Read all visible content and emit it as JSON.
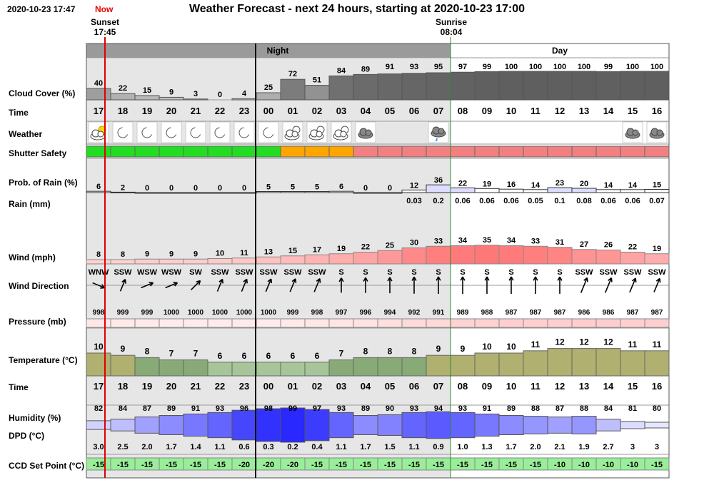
{
  "header": {
    "datetime": "2020-10-23 17:47",
    "now_label": "Now",
    "title": "Weather Forecast - next 24 hours, starting at 2020-10-23 17:00"
  },
  "sunset": {
    "label": "Sunset",
    "time": "17:45"
  },
  "sunrise": {
    "label": "Sunrise",
    "time": "08:04"
  },
  "bands": {
    "night": "Night",
    "day": "Day"
  },
  "row_labels": {
    "cloud": "Cloud Cover (%)",
    "time": "Time",
    "weather": "Weather",
    "shutter": "Shutter Safety",
    "rain_prob": "Prob. of Rain (%)",
    "rain_mm": "Rain (mm)",
    "wind": "Wind (mph)",
    "wind_dir": "Wind Direction",
    "pressure": "Pressure (mb)",
    "temperature": "Temperature (°C)",
    "time2": "Time",
    "humidity": "Humidity (%)",
    "dpd": "DPD (°C)",
    "ccd": "CCD Set Point (°C)"
  },
  "hours": [
    "17",
    "18",
    "19",
    "20",
    "21",
    "22",
    "23",
    "00",
    "01",
    "02",
    "03",
    "04",
    "05",
    "06",
    "07",
    "08",
    "09",
    "10",
    "11",
    "12",
    "13",
    "14",
    "15",
    "16"
  ],
  "cloud_cover": [
    "40",
    "22",
    "15",
    "9",
    "3",
    "0",
    "4",
    "25",
    "72",
    "51",
    "84",
    "89",
    "91",
    "93",
    "95",
    "97",
    "99",
    "100",
    "100",
    "100",
    "100",
    "99",
    "100",
    "100"
  ],
  "weather_icons": [
    "partly-cloudy-day-icon",
    "moon-icon",
    "moon-icon",
    "moon-icon",
    "moon-icon",
    "moon-icon",
    "moon-icon",
    "moon-icon",
    "cloudy-night-icon",
    "cloudy-night-icon",
    "cloudy-night-icon",
    "cloud-icon",
    "",
    "",
    "rain-cloud-icon",
    "",
    "",
    "",
    "",
    "",
    "",
    "",
    "cloud-icon",
    "cloud-icon"
  ],
  "shutter_safety": [
    "safe",
    "safe",
    "safe",
    "safe",
    "safe",
    "safe",
    "safe",
    "safe",
    "caution",
    "caution",
    "caution",
    "unsafe",
    "unsafe",
    "unsafe",
    "unsafe",
    "unsafe",
    "unsafe",
    "unsafe",
    "unsafe",
    "unsafe",
    "unsafe",
    "unsafe",
    "unsafe",
    "unsafe"
  ],
  "rain_prob": [
    "6",
    "2",
    "0",
    "0",
    "0",
    "0",
    "0",
    "5",
    "5",
    "5",
    "6",
    "0",
    "0",
    "12",
    "36",
    "22",
    "19",
    "16",
    "14",
    "23",
    "20",
    "14",
    "14",
    "15"
  ],
  "rain_mm": [
    "",
    "",
    "",
    "",
    "",
    "",
    "",
    "",
    "",
    "",
    "",
    "",
    "",
    "0.03",
    "0.2",
    "0.06",
    "0.06",
    "0.06",
    "0.05",
    "0.1",
    "0.08",
    "0.06",
    "0.06",
    "0.07"
  ],
  "wind": [
    "8",
    "8",
    "9",
    "9",
    "9",
    "10",
    "11",
    "13",
    "15",
    "17",
    "19",
    "22",
    "25",
    "30",
    "33",
    "34",
    "35",
    "34",
    "33",
    "31",
    "27",
    "26",
    "22",
    "19"
  ],
  "wind_dir": [
    "WNW",
    "SSW",
    "WSW",
    "WSW",
    "SW",
    "SSW",
    "SSW",
    "SSW",
    "SSW",
    "SSW",
    "S",
    "S",
    "S",
    "S",
    "S",
    "S",
    "S",
    "S",
    "S",
    "S",
    "SSW",
    "SSW",
    "SSW",
    "SSW"
  ],
  "pressure": [
    "998",
    "999",
    "999",
    "1000",
    "1000",
    "1000",
    "1000",
    "1000",
    "999",
    "998",
    "997",
    "996",
    "994",
    "992",
    "991",
    "989",
    "988",
    "987",
    "987",
    "987",
    "986",
    "986",
    "987",
    "987"
  ],
  "temperature": [
    "10",
    "9",
    "8",
    "7",
    "7",
    "6",
    "6",
    "6",
    "6",
    "6",
    "7",
    "8",
    "8",
    "8",
    "9",
    "9",
    "10",
    "10",
    "11",
    "12",
    "12",
    "12",
    "11",
    "11"
  ],
  "humidity": [
    "82",
    "84",
    "87",
    "89",
    "91",
    "93",
    "96",
    "98",
    "99",
    "97",
    "93",
    "89",
    "90",
    "93",
    "94",
    "93",
    "91",
    "89",
    "88",
    "87",
    "88",
    "84",
    "81",
    "80"
  ],
  "dpd": [
    "3.0",
    "2.5",
    "2.0",
    "1.7",
    "1.4",
    "1.1",
    "0.6",
    "0.3",
    "0.2",
    "0.4",
    "1.1",
    "1.7",
    "1.5",
    "1.1",
    "0.9",
    "1.0",
    "1.3",
    "1.7",
    "2.0",
    "2.1",
    "1.9",
    "2.7",
    "3",
    "3"
  ],
  "ccd_setpoint": [
    "-15",
    "-15",
    "-15",
    "-15",
    "-15",
    "-15",
    "-20",
    "-20",
    "-20",
    "-15",
    "-15",
    "-15",
    "-15",
    "-15",
    "-15",
    "-15",
    "-15",
    "-15",
    "-15",
    "-10",
    "-10",
    "-10",
    "-10",
    "-15"
  ],
  "colors": {
    "safe": "#22dd22",
    "caution": "#ffa500",
    "unsafe": "#f28080",
    "night_bg": "#e6e6e6",
    "band_night": "#9a9a9a",
    "now_line": "#e00000",
    "humidity": "#3333ff",
    "ccd": "#99ee99"
  }
}
